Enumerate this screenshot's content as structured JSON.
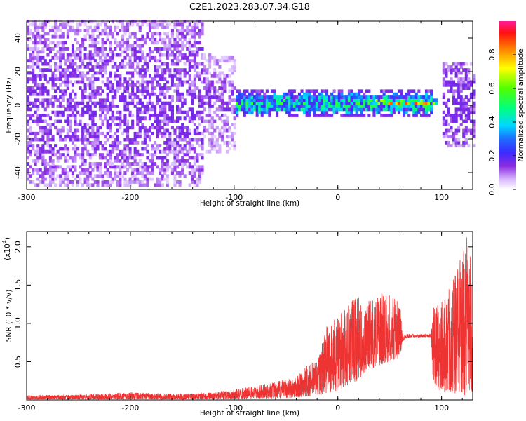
{
  "figure": {
    "title": "C2E1.2023.283.07.34.G18"
  },
  "chart_data": [
    {
      "type": "heatmap",
      "xlabel": "Height of straight line (km)",
      "ylabel": "Frequency (Hz)",
      "xlim": [
        -300,
        130
      ],
      "ylim": [
        -50,
        50
      ],
      "x_ticks": [
        -300,
        -200,
        -100,
        0,
        100
      ],
      "y_ticks": [
        -40,
        -20,
        0,
        20,
        40
      ],
      "colorbar": {
        "label": "Normalized spectral amplitude",
        "range": [
          0,
          1
        ],
        "ticks": [
          0.0,
          0.2,
          0.4,
          0.6,
          0.8
        ],
        "tick_labels": [
          "0.0",
          "0.2",
          "0.4",
          "0.6",
          "0.8"
        ],
        "colormap": "rainbow (white→purple→blue→cyan→green→yellow→red→magenta)"
      },
      "features": [
        {
          "x_range": [
            -300,
            -130
          ],
          "freq_spread_hz": 50,
          "amplitude": 0.2,
          "description_on_image": false
        },
        {
          "x_range": [
            -130,
            -100
          ],
          "freq_spread_hz": 30,
          "amplitude": 0.15,
          "description_on_image": false
        },
        {
          "x_range": [
            -100,
            90
          ],
          "freq_spread_hz": 8,
          "amplitude": 0.5,
          "description_on_image": false
        },
        {
          "x_range": [
            25,
            95
          ],
          "freq_hz": 1,
          "amplitude": 0.9,
          "description_on_image": false
        },
        {
          "x_range": [
            100,
            130
          ],
          "freq_spread_hz": 25,
          "amplitude": 0.25,
          "description_on_image": false
        }
      ]
    },
    {
      "type": "line",
      "series_color": "#ee3333",
      "xlabel": "Height of straight line (km)",
      "ylabel": "SNR (10 * v/v)",
      "y_multiplier": "(x10",
      "y_multiplier_exp": "4",
      "y_multiplier_close": ")",
      "xlim": [
        -300,
        130
      ],
      "ylim": [
        0,
        2.2
      ],
      "x_ticks": [
        -300,
        -200,
        -100,
        0,
        100
      ],
      "y_ticks": [
        0.5,
        1.0,
        1.5,
        2.0
      ],
      "y_tick_labels": [
        "0.5",
        "1.0",
        "1.5",
        "2.0"
      ],
      "envelope": {
        "x": [
          -300,
          -250,
          -200,
          -150,
          -120,
          -100,
          -80,
          -60,
          -40,
          -30,
          -20,
          -10,
          0,
          5,
          10,
          20,
          25,
          30,
          40,
          50,
          60,
          62,
          65,
          70,
          80,
          90,
          92,
          100,
          110,
          120,
          125,
          130
        ],
        "low": [
          0.01,
          0.01,
          0.01,
          0.01,
          0.01,
          0.01,
          0.02,
          0.02,
          0.03,
          0.04,
          0.05,
          0.08,
          0.12,
          0.15,
          0.2,
          0.25,
          0.35,
          0.4,
          0.45,
          0.5,
          0.55,
          0.75,
          0.8,
          0.82,
          0.82,
          0.82,
          0.15,
          0.1,
          0.1,
          0.05,
          0.05,
          0.1
        ],
        "high": [
          0.06,
          0.07,
          0.1,
          0.08,
          0.1,
          0.14,
          0.18,
          0.24,
          0.3,
          0.45,
          0.55,
          1.0,
          1.1,
          1.2,
          1.3,
          1.35,
          1.1,
          1.3,
          1.4,
          1.4,
          1.25,
          0.9,
          0.87,
          0.86,
          0.86,
          0.88,
          1.2,
          1.3,
          1.6,
          1.9,
          2.2,
          1.6
        ]
      }
    }
  ]
}
